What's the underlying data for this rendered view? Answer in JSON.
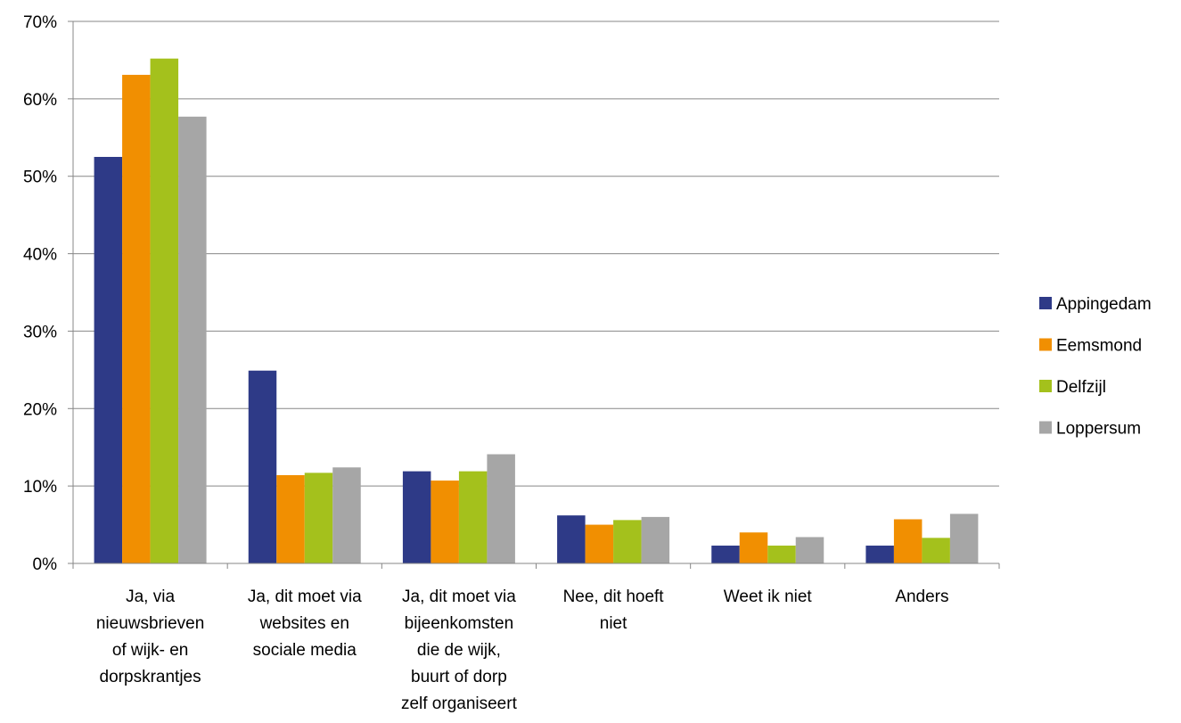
{
  "chart_data": {
    "type": "bar",
    "categories": [
      [
        "Ja, via",
        "nieuwsbrieven",
        "of wijk- en",
        "dorpskrantjes"
      ],
      [
        "Ja, dit moet via",
        "websites en",
        "sociale media"
      ],
      [
        "Ja, dit moet via",
        "bijeenkomsten",
        "die de wijk,",
        "buurt of dorp",
        "zelf organiseert"
      ],
      [
        "Nee, dit hoeft",
        "niet"
      ],
      [
        "Weet ik niet"
      ],
      [
        "Anders"
      ]
    ],
    "series": [
      {
        "name": "Appingedam",
        "color": "#2E3A87",
        "values": [
          52.5,
          24.9,
          11.9,
          6.2,
          2.3,
          2.3
        ]
      },
      {
        "name": "Eemsmond",
        "color": "#F18F01",
        "values": [
          63.1,
          11.4,
          10.7,
          5.0,
          4.0,
          5.7
        ]
      },
      {
        "name": "Delfzijl",
        "color": "#A4C11C",
        "values": [
          65.2,
          11.7,
          11.9,
          5.6,
          2.3,
          3.3
        ]
      },
      {
        "name": "Loppersum",
        "color": "#A6A6A6",
        "values": [
          57.7,
          12.4,
          14.1,
          6.0,
          3.4,
          6.4
        ]
      }
    ],
    "yticks": [
      "0%",
      "10%",
      "20%",
      "30%",
      "40%",
      "50%",
      "60%",
      "70%"
    ],
    "ylim": [
      0,
      70
    ],
    "grid": true,
    "legend_position": "right",
    "gridline_color": "#878787",
    "axis_color": "#878787"
  }
}
